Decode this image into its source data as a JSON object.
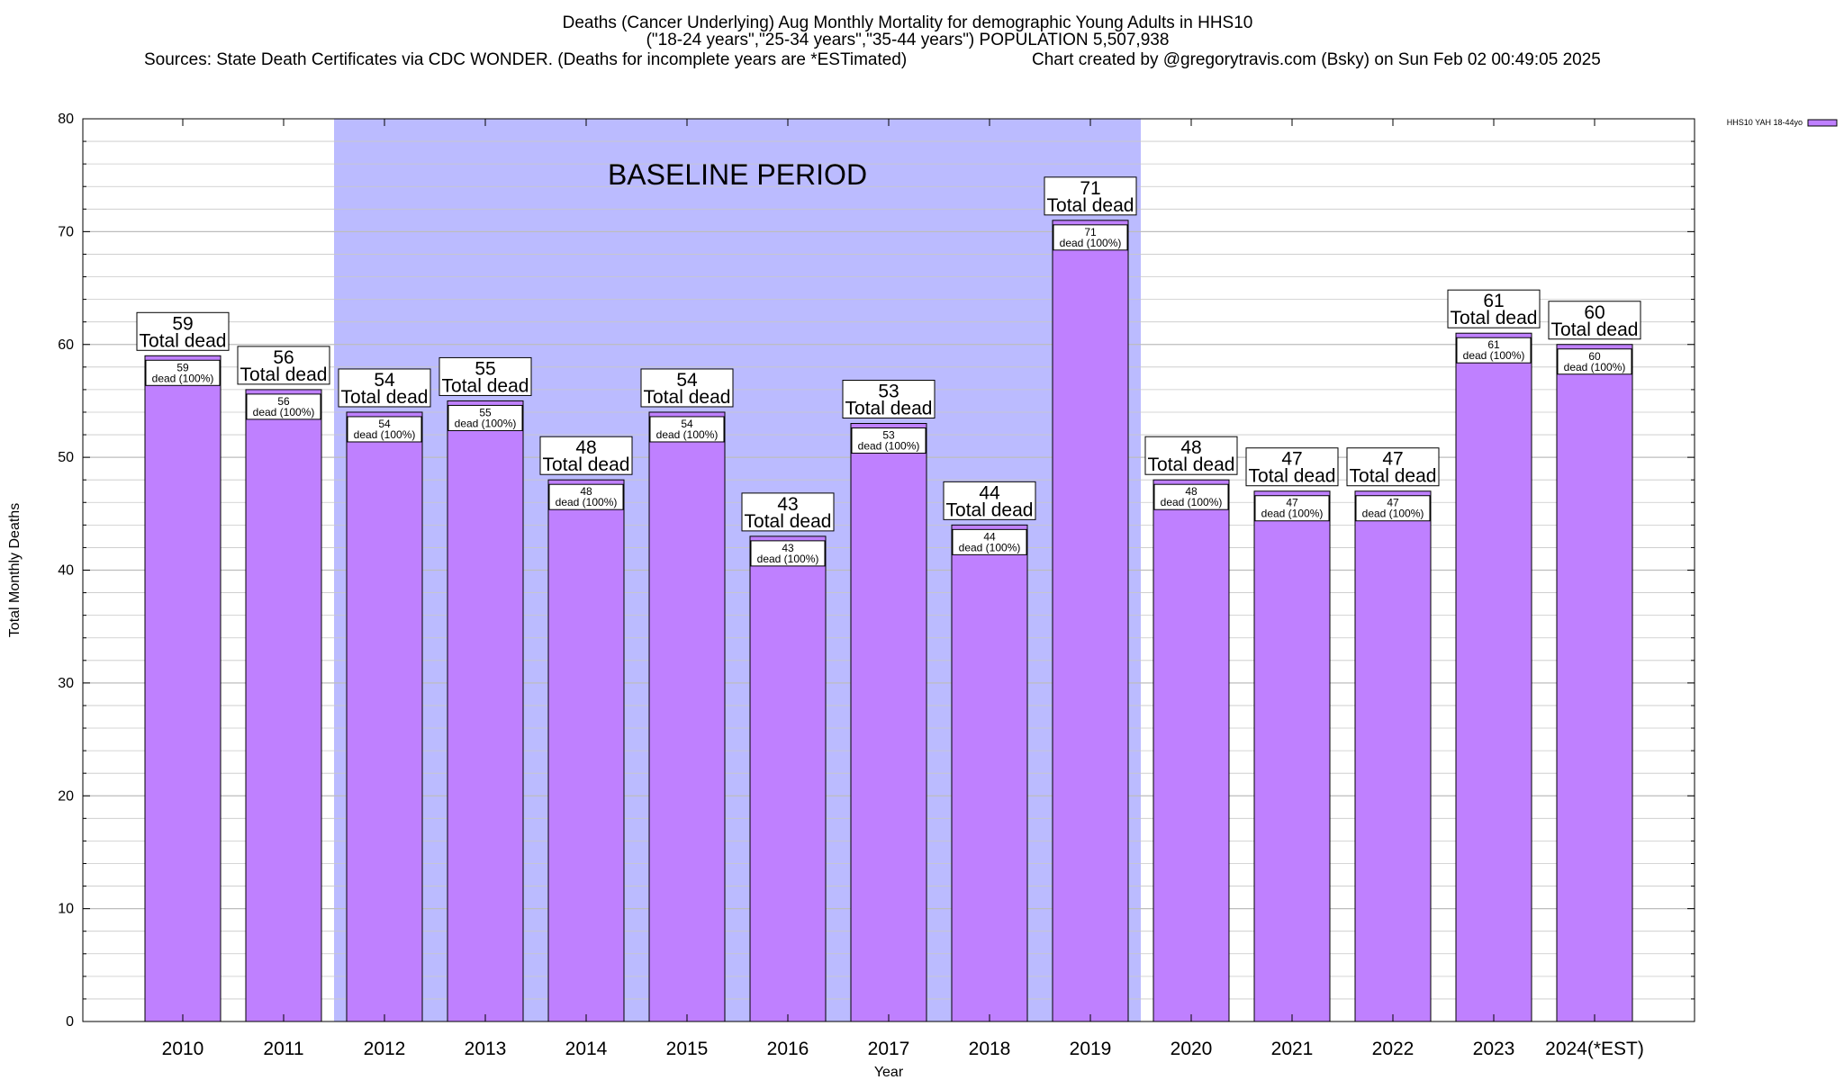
{
  "title": {
    "line1": "Deaths (Cancer Underlying) Aug Monthly Mortality for demographic Young Adults in HHS10",
    "line2": "(\"18-24 years\",\"25-34 years\",\"35-44 years\") POPULATION 5,507,938",
    "line3_left": "Sources: State Death Certificates via CDC WONDER. (Deaths for incomplete years are *ESTimated)",
    "line3_right": "Chart created by @gregorytravis.com (Bsky) on Sun Feb 02 00:49:05 2025"
  },
  "annotation": {
    "baseline_label": "BASELINE PERIOD",
    "baseline_start": "2012",
    "baseline_end": "2019",
    "baseline_color": "#bbbbff"
  },
  "colors": {
    "bar_fill": "#bf80ff",
    "grid": "#c8c8c8"
  },
  "chart_data": {
    "type": "bar",
    "title": "Deaths (Cancer Underlying) Aug Monthly Mortality for demographic Young Adults in HHS10",
    "xlabel": "Year",
    "ylabel": "Total Monthly Deaths",
    "ylim": [
      0,
      80
    ],
    "yticks": [
      "0",
      "10",
      "20",
      "30",
      "40",
      "50",
      "60",
      "70",
      "80"
    ],
    "grid": true,
    "legend_position": "top-right",
    "categories": [
      "2010",
      "2011",
      "2012",
      "2013",
      "2014",
      "2015",
      "2016",
      "2017",
      "2018",
      "2019",
      "2020",
      "2021",
      "2022",
      "2023",
      "2024(*EST)"
    ],
    "series": [
      {
        "name": "HHS10 YAH 18-44yo",
        "color": "#bf80ff",
        "values": [
          59,
          56,
          54,
          55,
          48,
          54,
          43,
          53,
          44,
          71,
          48,
          47,
          47,
          61,
          60
        ],
        "total_labels": [
          "59",
          "56",
          "54",
          "55",
          "48",
          "54",
          "43",
          "53",
          "44",
          "71",
          "48",
          "47",
          "47",
          "61",
          "60"
        ],
        "inner_labels": [
          "59",
          "56",
          "54",
          "55",
          "48",
          "54",
          "43",
          "53",
          "44",
          "71",
          "48",
          "47",
          "47",
          "61",
          "60"
        ]
      }
    ],
    "total_label_text": "Total dead",
    "inner_label_text": "dead (100%)"
  }
}
